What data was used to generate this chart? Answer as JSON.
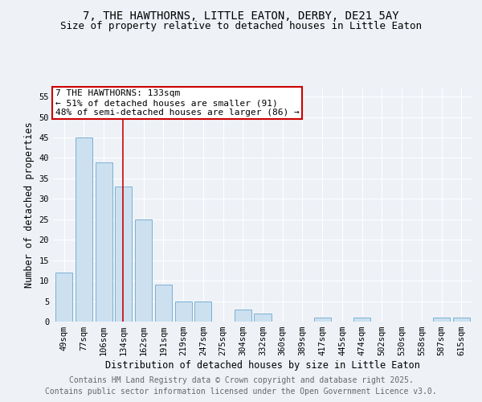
{
  "title": "7, THE HAWTHORNS, LITTLE EATON, DERBY, DE21 5AY",
  "subtitle": "Size of property relative to detached houses in Little Eaton",
  "xlabel": "Distribution of detached houses by size in Little Eaton",
  "ylabel": "Number of detached properties",
  "categories": [
    "49sqm",
    "77sqm",
    "106sqm",
    "134sqm",
    "162sqm",
    "191sqm",
    "219sqm",
    "247sqm",
    "275sqm",
    "304sqm",
    "332sqm",
    "360sqm",
    "389sqm",
    "417sqm",
    "445sqm",
    "474sqm",
    "502sqm",
    "530sqm",
    "558sqm",
    "587sqm",
    "615sqm"
  ],
  "values": [
    12,
    45,
    39,
    33,
    25,
    9,
    5,
    5,
    0,
    3,
    2,
    0,
    0,
    1,
    0,
    1,
    0,
    0,
    0,
    1,
    1
  ],
  "bar_color": "#cce0f0",
  "bar_edge_color": "#7ab0d4",
  "bar_width": 0.85,
  "ylim": [
    0,
    57
  ],
  "yticks": [
    0,
    5,
    10,
    15,
    20,
    25,
    30,
    35,
    40,
    45,
    50,
    55
  ],
  "marker_label": "7 THE HAWTHORNS: 133sqm",
  "annotation_line1": "← 51% of detached houses are smaller (91)",
  "annotation_line2": "48% of semi-detached houses are larger (86) →",
  "annotation_box_color": "#ffffff",
  "annotation_box_edge_color": "#cc0000",
  "marker_line_color": "#cc0000",
  "background_color": "#eef2f7",
  "grid_color": "#ffffff",
  "footer1": "Contains HM Land Registry data © Crown copyright and database right 2025.",
  "footer2": "Contains public sector information licensed under the Open Government Licence v3.0.",
  "title_fontsize": 10,
  "subtitle_fontsize": 9,
  "axis_label_fontsize": 8.5,
  "tick_fontsize": 7.5,
  "annotation_fontsize": 8,
  "footer_fontsize": 7
}
